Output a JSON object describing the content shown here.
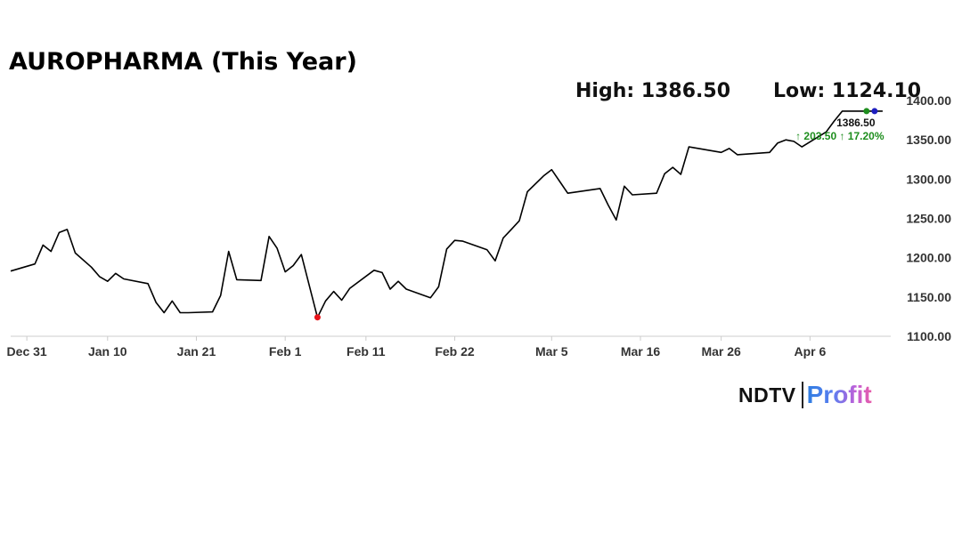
{
  "title": "AUROPHARMA (This Year)",
  "stats": {
    "high": "High: 1386.50",
    "low": "Low: 1124.10"
  },
  "last": {
    "value": "1386.50",
    "change": "↑ 203.50 ↑ 17.20%"
  },
  "brand": {
    "ndtv": "NDTV",
    "profit": "Profit"
  },
  "colors": {
    "line": "#000000",
    "low_marker": "#e8141b",
    "high_marker": "#1e8e1e",
    "last_marker": "#1f1fbf",
    "change": "#1e8e1e",
    "axis": "#cccccc"
  },
  "chart_data": {
    "type": "line",
    "title": "AUROPHARMA (This Year)",
    "xlabel": "",
    "ylabel": "",
    "ylim": [
      1100,
      1400
    ],
    "xlim": [
      "2023-12-29",
      "2024-04-16"
    ],
    "y_ticks": [
      1100,
      1150,
      1200,
      1250,
      1300,
      1350,
      1400
    ],
    "y_tick_labels": [
      "1100.00",
      "1150.00",
      "1200.00",
      "1250.00",
      "1300.00",
      "1350.00",
      "1400.00"
    ],
    "x_ticks": [
      {
        "date": "2023-12-31",
        "label": "Dec 31"
      },
      {
        "date": "2024-01-10",
        "label": "Jan 10"
      },
      {
        "date": "2024-01-21",
        "label": "Jan 21"
      },
      {
        "date": "2024-02-01",
        "label": "Feb 1"
      },
      {
        "date": "2024-02-11",
        "label": "Feb 11"
      },
      {
        "date": "2024-02-22",
        "label": "Feb 22"
      },
      {
        "date": "2024-03-05",
        "label": "Mar 5"
      },
      {
        "date": "2024-03-16",
        "label": "Mar 16"
      },
      {
        "date": "2024-03-26",
        "label": "Mar 26"
      },
      {
        "date": "2024-04-06",
        "label": "Apr 6"
      }
    ],
    "series": [
      {
        "x": [
          "2023-12-29",
          "2024-01-01",
          "2024-01-02",
          "2024-01-03",
          "2024-01-04",
          "2024-01-05",
          "2024-01-06",
          "2024-01-08",
          "2024-01-09",
          "2024-01-10",
          "2024-01-11",
          "2024-01-12",
          "2024-01-15",
          "2024-01-16",
          "2024-01-17",
          "2024-01-18",
          "2024-01-19",
          "2024-01-20",
          "2024-01-23",
          "2024-01-24",
          "2024-01-25",
          "2024-01-26",
          "2024-01-29",
          "2024-01-30",
          "2024-01-31",
          "2024-02-01",
          "2024-02-02",
          "2024-02-03",
          "2024-02-05",
          "2024-02-06",
          "2024-02-07",
          "2024-02-08",
          "2024-02-09",
          "2024-02-12",
          "2024-02-13",
          "2024-02-14",
          "2024-02-15",
          "2024-02-16",
          "2024-02-19",
          "2024-02-20",
          "2024-02-21",
          "2024-02-22",
          "2024-02-23",
          "2024-02-26",
          "2024-02-27",
          "2024-02-28",
          "2024-02-29",
          "2024-03-01",
          "2024-03-02",
          "2024-03-04",
          "2024-03-05",
          "2024-03-06",
          "2024-03-07",
          "2024-03-11",
          "2024-03-12",
          "2024-03-13",
          "2024-03-14",
          "2024-03-15",
          "2024-03-18",
          "2024-03-19",
          "2024-03-20",
          "2024-03-21",
          "2024-03-22",
          "2024-03-26",
          "2024-03-27",
          "2024-03-28",
          "2024-04-01",
          "2024-04-02",
          "2024-04-03",
          "2024-04-04",
          "2024-04-05",
          "2024-04-08",
          "2024-04-09",
          "2024-04-10",
          "2024-04-12",
          "2024-04-15"
        ],
        "y": [
          1183,
          1192,
          1216,
          1208,
          1232,
          1236,
          1206,
          1188,
          1176,
          1170,
          1180,
          1173,
          1167,
          1143,
          1130,
          1145,
          1130,
          1130,
          1131,
          1152,
          1208,
          1172,
          1171,
          1227,
          1212,
          1182,
          1190,
          1204,
          1124,
          1145,
          1157,
          1146,
          1161,
          1184,
          1181,
          1160,
          1170,
          1160,
          1149,
          1163,
          1211,
          1222,
          1221,
          1210,
          1196,
          1225,
          1236,
          1247,
          1284,
          1304,
          1312,
          1297,
          1282,
          1288,
          1267,
          1248,
          1291,
          1280,
          1282,
          1307,
          1315,
          1306,
          1341,
          1334,
          1339,
          1331,
          1334,
          1346,
          1350,
          1348,
          1341,
          1360,
          1374,
          1386.5,
          1386.5,
          1386.5
        ]
      }
    ],
    "points": [
      {
        "label": "low",
        "date": "2024-02-05",
        "value": 1124.1
      },
      {
        "label": "high",
        "date": "2024-04-13",
        "value": 1386.5
      },
      {
        "label": "last",
        "date": "2024-04-14",
        "value": 1386.5
      }
    ]
  }
}
